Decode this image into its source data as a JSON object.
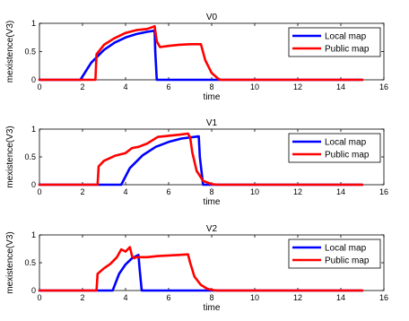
{
  "chart_data": [
    {
      "type": "line",
      "title": "V0",
      "xlabel": "time",
      "ylabel": "mexistence(V3)",
      "xlim": [
        0,
        16
      ],
      "ylim": [
        0,
        1
      ],
      "xticks": [
        0,
        2,
        4,
        6,
        8,
        10,
        12,
        14,
        16
      ],
      "yticks": [
        0,
        0.5,
        1
      ],
      "xtick_labels": [
        "0",
        "2",
        "4",
        "6",
        "8",
        "10",
        "12",
        "14",
        "16"
      ],
      "ytick_labels": [
        "0",
        "0.5",
        "1"
      ],
      "legend_position": "top-right",
      "series": [
        {
          "name": "Local map",
          "color": "#0000ff",
          "x": [
            0,
            1.9,
            2.4,
            3.0,
            3.5,
            4.0,
            4.5,
            5.0,
            5.35,
            5.38,
            5.45,
            15.0
          ],
          "y": [
            0,
            0,
            0.3,
            0.53,
            0.66,
            0.75,
            0.81,
            0.85,
            0.87,
            0.5,
            0,
            0
          ]
        },
        {
          "name": "Public map",
          "color": "#ff0000",
          "x": [
            0,
            2.6,
            2.65,
            3.0,
            3.5,
            4.0,
            4.5,
            5.0,
            5.3,
            5.35,
            5.45,
            5.6,
            6.0,
            6.5,
            7.0,
            7.5,
            7.7,
            8.0,
            8.3,
            8.4,
            15.0
          ],
          "y": [
            0,
            0,
            0.45,
            0.62,
            0.74,
            0.83,
            0.88,
            0.9,
            0.94,
            0.95,
            0.68,
            0.58,
            0.6,
            0.62,
            0.63,
            0.63,
            0.35,
            0.12,
            0.02,
            0,
            0
          ]
        }
      ]
    },
    {
      "type": "line",
      "title": "V1",
      "xlabel": "time",
      "ylabel": "mexistence(V3)",
      "xlim": [
        0,
        16
      ],
      "ylim": [
        0,
        1
      ],
      "xticks": [
        0,
        2,
        4,
        6,
        8,
        10,
        12,
        14,
        16
      ],
      "yticks": [
        0,
        0.5,
        1
      ],
      "xtick_labels": [
        "0",
        "2",
        "4",
        "6",
        "8",
        "10",
        "12",
        "14",
        "16"
      ],
      "ytick_labels": [
        "0",
        "0.5",
        "1"
      ],
      "legend_position": "top-right",
      "series": [
        {
          "name": "Local map",
          "color": "#0000ff",
          "x": [
            0,
            3.8,
            4.2,
            4.8,
            5.4,
            6.0,
            6.6,
            7.2,
            7.4,
            7.45,
            7.6,
            15.0
          ],
          "y": [
            0,
            0,
            0.3,
            0.53,
            0.68,
            0.77,
            0.83,
            0.86,
            0.87,
            0.5,
            0,
            0
          ]
        },
        {
          "name": "Public map",
          "color": "#ff0000",
          "x": [
            0,
            2.7,
            2.75,
            3.0,
            3.5,
            4.0,
            4.3,
            4.6,
            5.0,
            5.5,
            6.0,
            6.5,
            6.9,
            7.0,
            7.1,
            7.3,
            7.6,
            8.0,
            8.3,
            15.0
          ],
          "y": [
            0,
            0,
            0.33,
            0.43,
            0.52,
            0.57,
            0.66,
            0.68,
            0.74,
            0.86,
            0.88,
            0.9,
            0.92,
            0.85,
            0.58,
            0.25,
            0.07,
            0.01,
            0,
            0
          ]
        }
      ]
    },
    {
      "type": "line",
      "title": "V2",
      "xlabel": "time",
      "ylabel": "mexistence(V3)",
      "xlim": [
        0,
        16
      ],
      "ylim": [
        0,
        1
      ],
      "xticks": [
        0,
        2,
        4,
        6,
        8,
        10,
        12,
        14,
        16
      ],
      "yticks": [
        0,
        0.5,
        1
      ],
      "xtick_labels": [
        "0",
        "2",
        "4",
        "6",
        "8",
        "10",
        "12",
        "14",
        "16"
      ],
      "ytick_labels": [
        "0",
        "0.5",
        "1"
      ],
      "legend_position": "top-right",
      "series": [
        {
          "name": "Local map",
          "color": "#0000ff",
          "x": [
            0,
            3.4,
            3.7,
            4.0,
            4.3,
            4.6,
            4.65,
            4.75,
            15.0
          ],
          "y": [
            0,
            0,
            0.3,
            0.47,
            0.58,
            0.64,
            0.4,
            0,
            0
          ]
        },
        {
          "name": "Public map",
          "color": "#ff0000",
          "x": [
            0,
            2.65,
            2.7,
            3.0,
            3.3,
            3.6,
            3.8,
            4.0,
            4.2,
            4.3,
            4.4,
            4.5,
            5.0,
            5.5,
            6.0,
            6.5,
            6.9,
            7.0,
            7.2,
            7.5,
            7.8,
            8.1,
            8.3,
            15.0
          ],
          "y": [
            0,
            0,
            0.3,
            0.4,
            0.48,
            0.6,
            0.74,
            0.7,
            0.78,
            0.62,
            0.58,
            0.6,
            0.6,
            0.62,
            0.63,
            0.64,
            0.65,
            0.5,
            0.25,
            0.1,
            0.03,
            0.005,
            0,
            0
          ]
        }
      ]
    }
  ]
}
